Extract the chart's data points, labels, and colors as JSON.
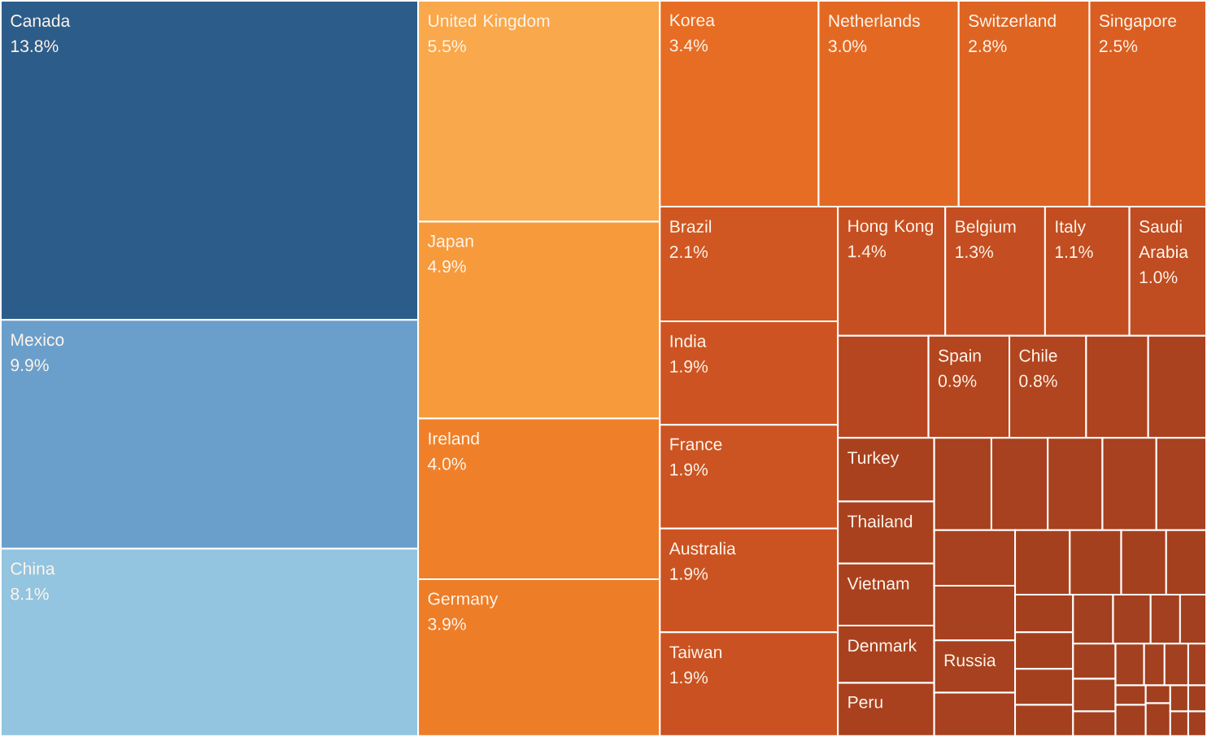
{
  "chart_data": {
    "type": "other",
    "categories": [
      "Canada",
      "Mexico",
      "China",
      "United Kingdom",
      "Japan",
      "Ireland",
      "Germany",
      "Korea",
      "Netherlands",
      "Switzerland",
      "Singapore",
      "Brazil",
      "India",
      "France",
      "Australia",
      "Taiwan",
      "Hong Kong",
      "Belgium",
      "Italy",
      "Saudi Arabia",
      null,
      "Spain",
      "Chile",
      null,
      null,
      "Turkey",
      "Thailand",
      "Vietnam",
      "Denmark",
      "Peru",
      null,
      null,
      null,
      null,
      null,
      null,
      null,
      "Russia",
      null,
      null,
      null,
      null,
      null,
      null,
      null,
      null,
      null,
      null,
      null,
      null,
      null,
      null,
      null,
      null,
      null,
      null,
      null,
      null,
      null,
      null,
      null,
      null,
      null,
      null,
      null,
      null
    ],
    "values": [
      13.8,
      9.9,
      8.1,
      5.5,
      4.9,
      4.0,
      3.9,
      3.4,
      3.0,
      2.8,
      2.5,
      2.1,
      1.9,
      1.9,
      1.9,
      1.9,
      1.4,
      1.3,
      1.1,
      1.0,
      null,
      0.9,
      0.8,
      null,
      null,
      null,
      null,
      null,
      null,
      null,
      null,
      null,
      null,
      null,
      null,
      null,
      null,
      null,
      null,
      null,
      null,
      null,
      null,
      null,
      null,
      null,
      null,
      null,
      null,
      null,
      null,
      null,
      null,
      null,
      null,
      null,
      null,
      null,
      null,
      null,
      null,
      null,
      null,
      null,
      null,
      null
    ],
    "value_labels": [
      "13.8%",
      "9.9%",
      "8.1%",
      "5.5%",
      "4.9%",
      "4.0%",
      "3.9%",
      "3.4%",
      "3.0%",
      "2.8%",
      "2.5%",
      "2.1%",
      "1.9%",
      "1.9%",
      "1.9%",
      "1.9%",
      "1.4%",
      "1.3%",
      "1.1%",
      "1.0%",
      null,
      "0.9%",
      "0.8%",
      null,
      null,
      null,
      null,
      null,
      null,
      null,
      null,
      null,
      null,
      null,
      null,
      null,
      null,
      null,
      null,
      null,
      null,
      null,
      null,
      null,
      null,
      null,
      null,
      null,
      null,
      null,
      null,
      null,
      null,
      null,
      null,
      null,
      null,
      null,
      null,
      null,
      null,
      null,
      null,
      null,
      null,
      null
    ],
    "colors": [
      "#2c5d8a",
      "#6b9fcb",
      "#93c4e0",
      "#f9a84b",
      "#f69a3b",
      "#ef8029",
      "#ee7d28",
      "#e76d24",
      "#e36923",
      "#de6422",
      "#da5e22",
      "#d05722",
      "#cd5422",
      "#cc5322",
      "#cb5322",
      "#ca5222",
      "#c64f21",
      "#c44e21",
      "#c24d21",
      "#c04c21",
      "#b5461f",
      "#b3451f",
      "#b1451f",
      "#ad431f",
      "#ab421f",
      "#a9411f",
      "#a9411f",
      "#a9411f",
      "#a9411f",
      "#a9411f",
      "#a7411f",
      "#a7411f",
      "#a7411f",
      "#a7411f",
      "#a7411f",
      "#a7411f",
      "#a7411f",
      "#a7411f",
      "#a7411f",
      "#a5401f",
      "#a5401f",
      "#a5401f",
      "#a5401f",
      "#a5401f",
      "#a5401f",
      "#a5401f",
      "#a5401f",
      "#a3401f",
      "#a3401f",
      "#a3401f",
      "#a3401f",
      "#a3401f",
      "#a3401f",
      "#a3401f",
      "#a3401f",
      "#a3401f",
      "#a3401f",
      "#a3401f",
      "#a23f1f",
      "#a23f1f",
      "#a23f1f",
      "#a23f1f",
      "#a23f1f",
      "#a23f1f",
      "#a23f1f",
      "#a23f1f"
    ]
  }
}
